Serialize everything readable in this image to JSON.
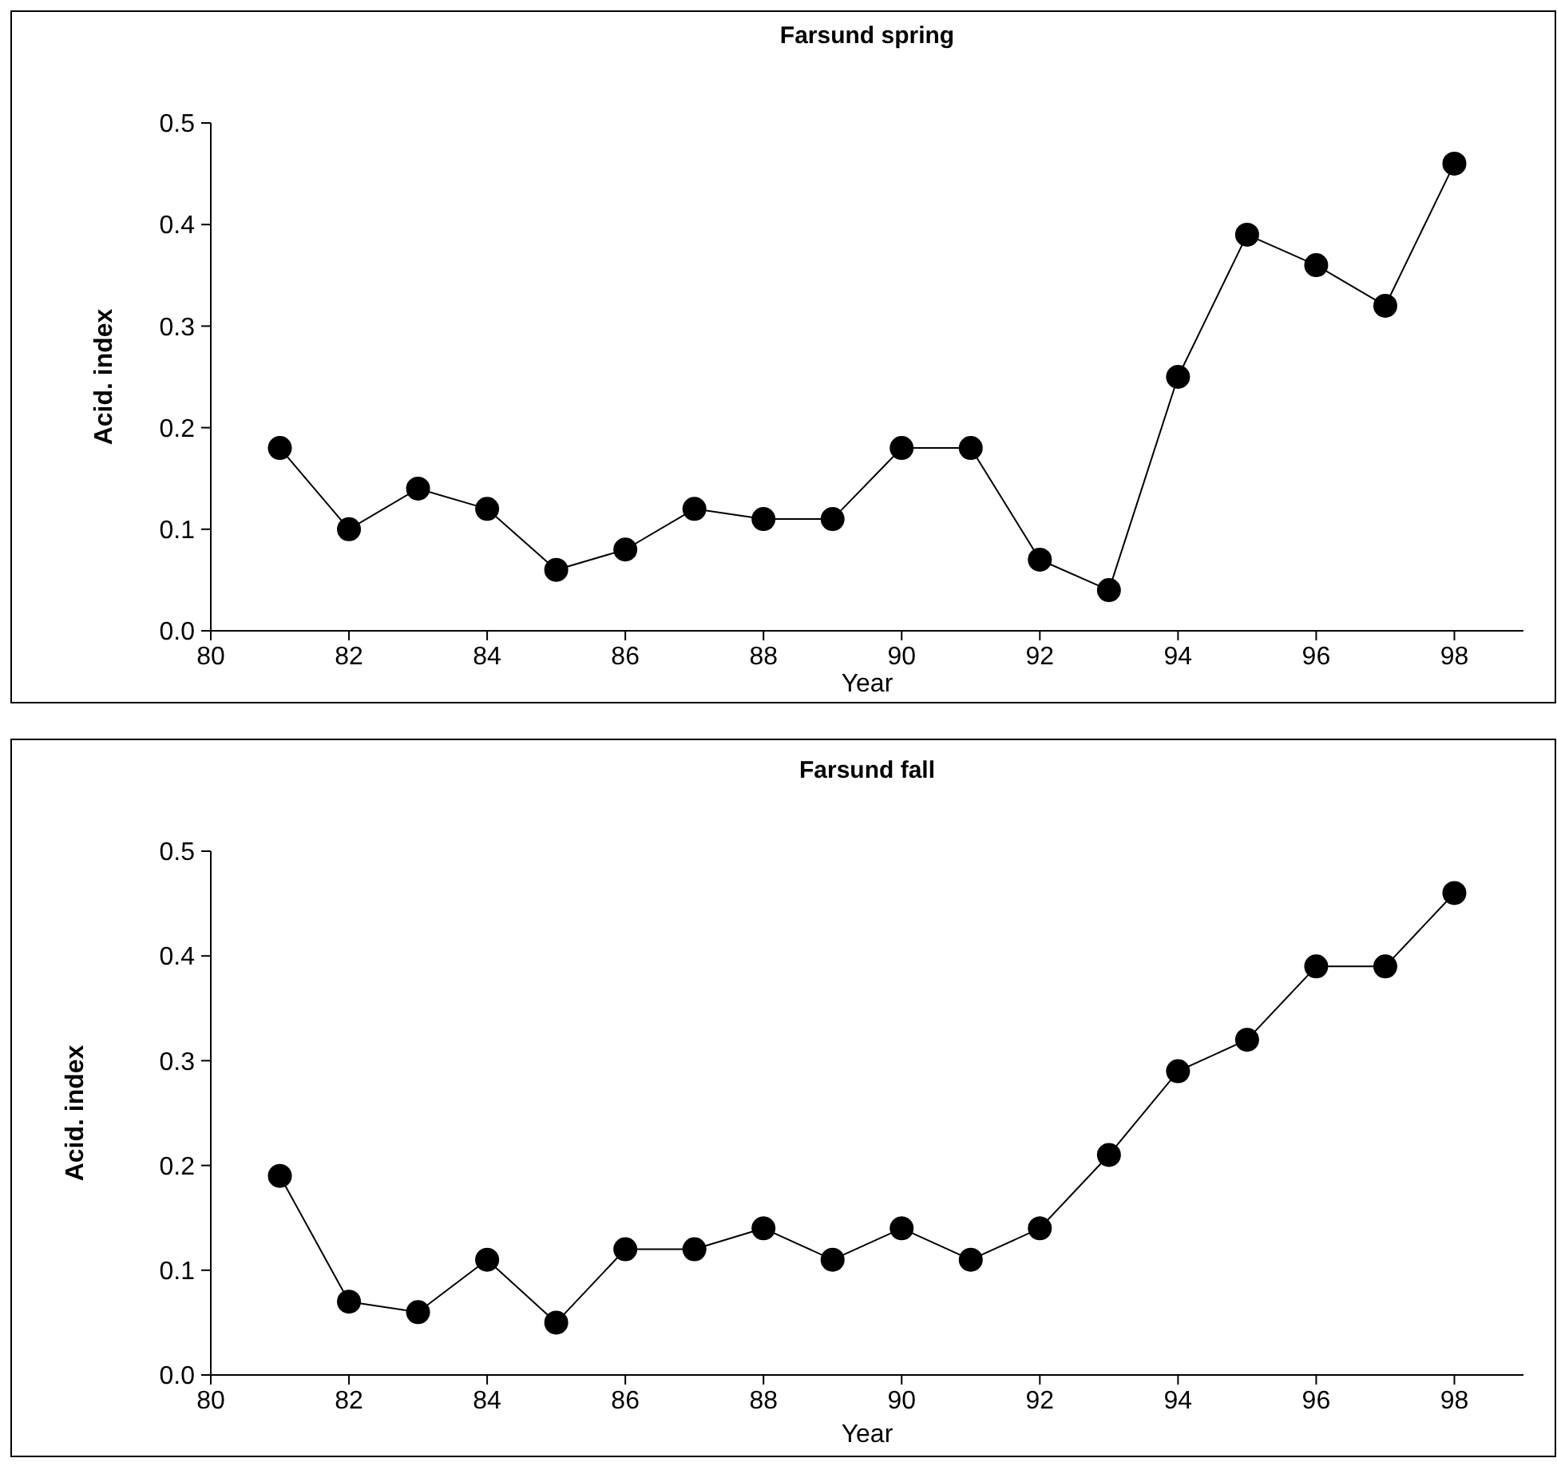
{
  "chart_data": [
    {
      "type": "line",
      "title": "Farsund spring",
      "xlabel": "Year",
      "ylabel": "Acid. index",
      "x": [
        81,
        82,
        83,
        84,
        85,
        86,
        87,
        88,
        89,
        90,
        91,
        92,
        93,
        94,
        95,
        96,
        97,
        98
      ],
      "series": [
        {
          "color": "#000000",
          "values": [
            0.18,
            0.1,
            0.14,
            0.12,
            0.06,
            0.08,
            0.12,
            0.11,
            0.11,
            0.18,
            0.18,
            0.07,
            0.04,
            0.25,
            0.39,
            0.36,
            0.32,
            0.46
          ]
        }
      ],
      "xlim": [
        80,
        99
      ],
      "xticks": [
        80,
        82,
        84,
        86,
        88,
        90,
        92,
        94,
        96,
        98
      ],
      "ylim": [
        0,
        0.5
      ],
      "yticks": [
        {
          "value": 0,
          "label": "0.0"
        },
        0.1,
        0.2,
        0.3,
        0.4,
        0.5
      ],
      "grid": false,
      "marker": "circle",
      "line_style": "solid"
    },
    {
      "type": "line",
      "title": "Farsund fall",
      "xlabel": "Year",
      "ylabel": "Acid. index",
      "x": [
        81,
        82,
        83,
        84,
        85,
        86,
        87,
        88,
        89,
        90,
        91,
        92,
        93,
        94,
        95,
        96,
        97,
        98
      ],
      "series": [
        {
          "color": "#000000",
          "values": [
            0.19,
            0.07,
            0.06,
            0.11,
            0.05,
            0.12,
            0.12,
            0.14,
            0.11,
            0.14,
            0.11,
            0.14,
            0.21,
            0.29,
            0.32,
            0.39,
            0.39,
            0.46
          ]
        }
      ],
      "xlim": [
        80,
        99
      ],
      "xticks": [
        80,
        82,
        84,
        86,
        88,
        90,
        92,
        94,
        96,
        98
      ],
      "ylim": [
        0,
        0.5
      ],
      "yticks": [
        {
          "value": 0,
          "label": "0.0"
        },
        0.1,
        0.2,
        0.3,
        0.4,
        0.5
      ],
      "grid": false,
      "marker": "circle",
      "line_style": "solid"
    }
  ]
}
